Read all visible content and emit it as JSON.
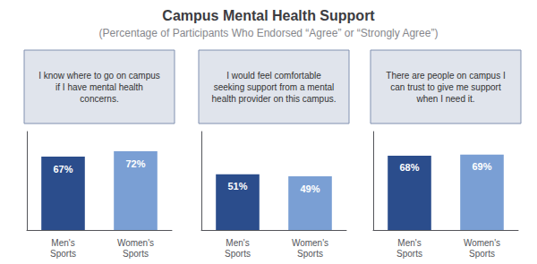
{
  "title": "Campus Mental Health Support",
  "subtitle": "(Percentage of Participants Who Endorsed “Agree” or “Strongly Agree”)",
  "chart_data": [
    {
      "type": "bar",
      "title": "I know where to go on campus\nif I have mental health\nconcerns.",
      "categories": [
        "Men's\nSports",
        "Women's\nSports"
      ],
      "values": [
        67,
        72
      ],
      "value_labels": [
        "67%",
        "72%"
      ],
      "colors": [
        "#2B4D8C",
        "#7A9FD4"
      ],
      "ylim": [
        0,
        90
      ],
      "grid": false,
      "data_labels": true,
      "tick_labels": "x"
    },
    {
      "type": "bar",
      "title": "I would feel comfortable\nseeking support from a mental\nhealth provider on this campus.",
      "categories": [
        "Men's\nSports",
        "Women's\nSports"
      ],
      "values": [
        51,
        49
      ],
      "value_labels": [
        "51%",
        "49%"
      ],
      "colors": [
        "#2B4D8C",
        "#7A9FD4"
      ],
      "ylim": [
        0,
        90
      ],
      "grid": false,
      "data_labels": true,
      "tick_labels": "x"
    },
    {
      "type": "bar",
      "title": "There are people on campus I\ncan trust to give me support\nwhen I need it.",
      "categories": [
        "Men's\nSports",
        "Women's\nSports"
      ],
      "values": [
        68,
        69
      ],
      "value_labels": [
        "68%",
        "69%"
      ],
      "colors": [
        "#2B4D8C",
        "#7A9FD4"
      ],
      "ylim": [
        0,
        90
      ],
      "grid": false,
      "data_labels": true,
      "tick_labels": "x"
    }
  ]
}
